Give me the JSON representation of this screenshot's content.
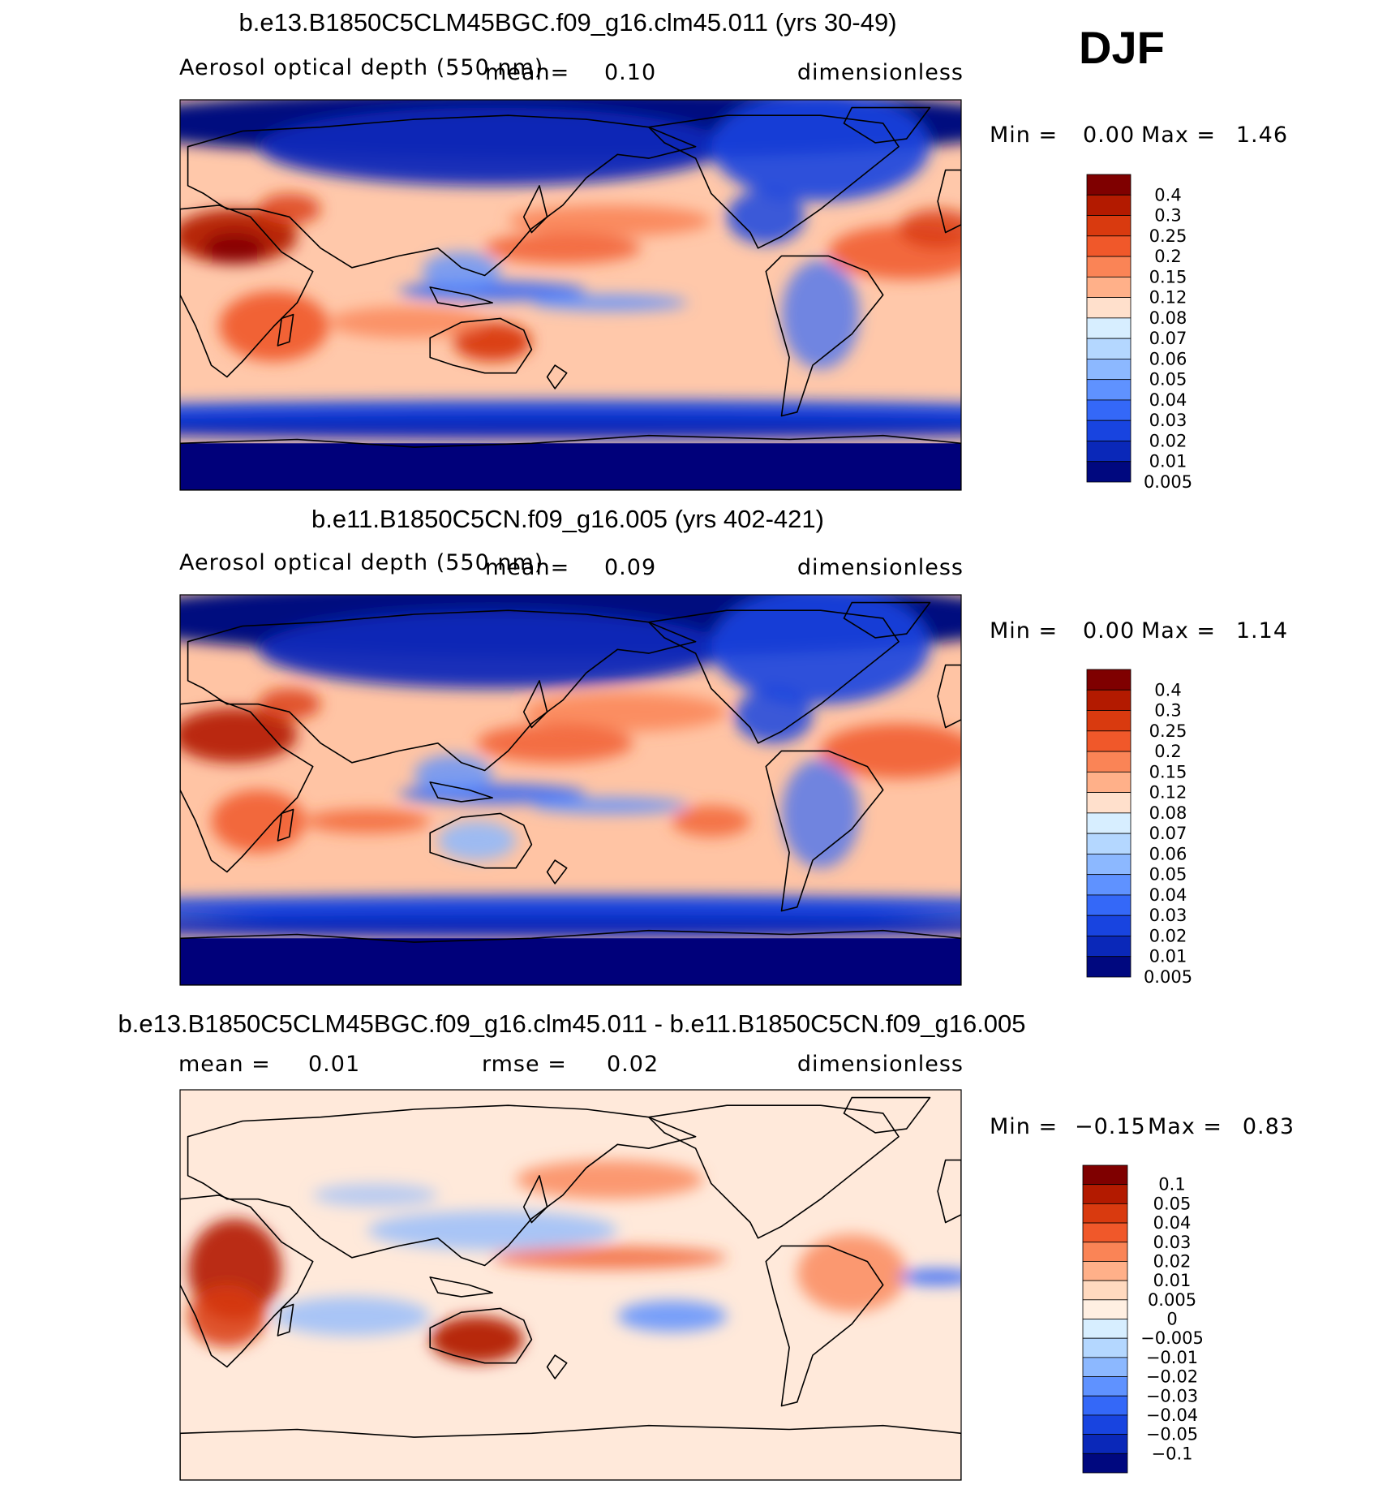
{
  "season": "DJF",
  "colors": {
    "ocean_base": "#FFE0CC",
    "antarctic": "#00007A",
    "coast": "#000000"
  },
  "panels": [
    {
      "id": "case",
      "title": "b.e13.B1850C5CLM45BGC.f09_g16.clm45.011 (yrs 30-49)",
      "variable": "Aerosol optical depth (550 nm)",
      "mean_label": "mean=",
      "mean_value": "0.10",
      "rmse_label": "",
      "rmse_value": "",
      "units": "dimensionless",
      "min_label": "Min =",
      "min_value": "0.00",
      "max_label": "Max =",
      "max_value": "1.46",
      "legend": {
        "labels": [
          "0.4",
          "0.3",
          "0.25",
          "0.2",
          "0.15",
          "0.12",
          "0.08",
          "0.07",
          "0.06",
          "0.05",
          "0.04",
          "0.03",
          "0.02",
          "0.01",
          "0.005"
        ],
        "colors": [
          "#7F0000",
          "#B31A00",
          "#D93A0F",
          "#F0582A",
          "#FA8456",
          "#FFB089",
          "#FFE0CC",
          "#D7EEFF",
          "#B4D7FF",
          "#8CB8FF",
          "#5F92FF",
          "#3468F8",
          "#1844E0",
          "#0A28B9",
          "#00087F"
        ]
      }
    },
    {
      "id": "control",
      "title": "b.e11.B1850C5CN.f09_g16.005 (yrs 402-421)",
      "variable": "Aerosol optical depth (550 nm)",
      "mean_label": "mean=",
      "mean_value": "0.09",
      "rmse_label": "",
      "rmse_value": "",
      "units": "dimensionless",
      "min_label": "Min =",
      "min_value": "0.00",
      "max_label": "Max =",
      "max_value": "1.14",
      "legend": {
        "labels": [
          "0.4",
          "0.3",
          "0.25",
          "0.2",
          "0.15",
          "0.12",
          "0.08",
          "0.07",
          "0.06",
          "0.05",
          "0.04",
          "0.03",
          "0.02",
          "0.01",
          "0.005"
        ],
        "colors": [
          "#7F0000",
          "#B31A00",
          "#D93A0F",
          "#F0582A",
          "#FA8456",
          "#FFB089",
          "#FFE0CC",
          "#D7EEFF",
          "#B4D7FF",
          "#8CB8FF",
          "#5F92FF",
          "#3468F8",
          "#1844E0",
          "#0A28B9",
          "#00087F"
        ]
      }
    },
    {
      "id": "diff",
      "title": "b.e13.B1850C5CLM45BGC.f09_g16.clm45.011 - b.e11.B1850C5CN.f09_g16.005",
      "variable": "",
      "mean_label": "mean =",
      "mean_value": "0.01",
      "rmse_label": "rmse =",
      "rmse_value": "0.02",
      "units": "dimensionless",
      "min_label": "Min =",
      "min_value": "−0.15",
      "max_label": "Max =",
      "max_value": "0.83",
      "legend": {
        "labels": [
          "0.1",
          "0.05",
          "0.04",
          "0.03",
          "0.02",
          "0.01",
          "0.005",
          "0",
          "−0.005",
          "−0.01",
          "−0.02",
          "−0.03",
          "−0.04",
          "−0.05",
          "−0.1"
        ],
        "colors": [
          "#7F0000",
          "#B31A00",
          "#D93A0F",
          "#F0582A",
          "#FA8456",
          "#FFB089",
          "#FFD9BF",
          "#FFEFE2",
          "#D7EEFF",
          "#B4D7FF",
          "#8CB8FF",
          "#5F92FF",
          "#3468F8",
          "#1844E0",
          "#0A28B9",
          "#00087F"
        ]
      }
    }
  ]
}
